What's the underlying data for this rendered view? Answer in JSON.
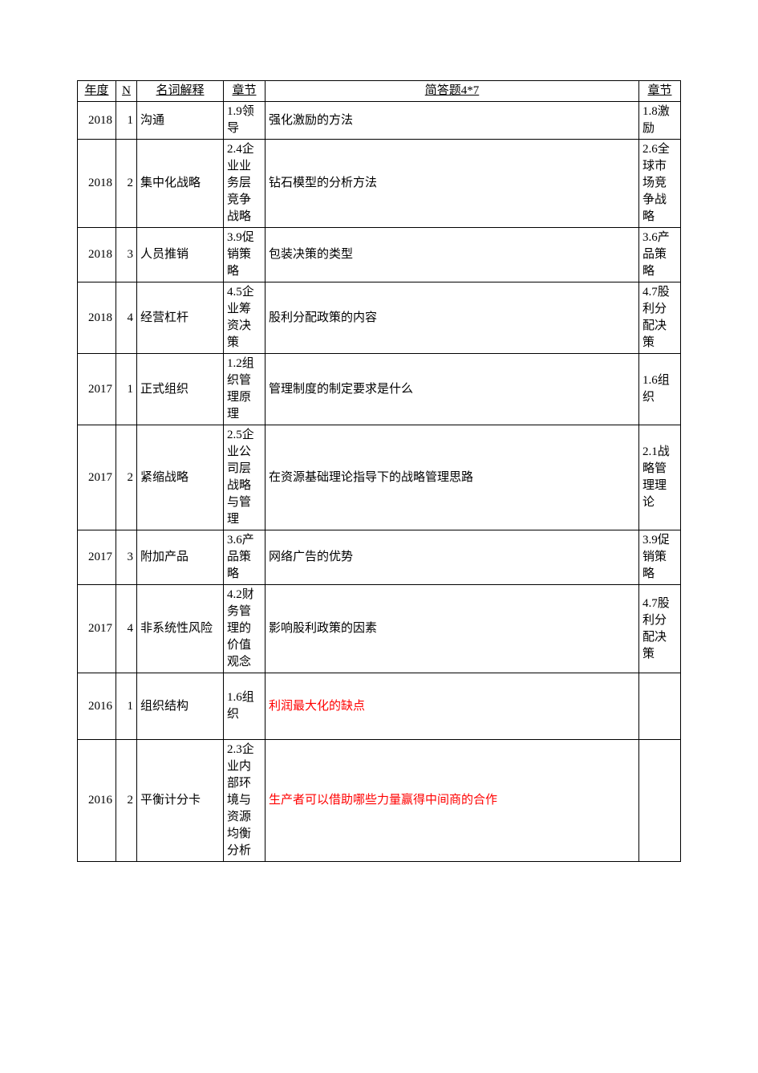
{
  "table": {
    "headers": {
      "year": "年度",
      "n": "N",
      "term": "名词解释",
      "ch1": "章节",
      "question": "简答题4*7",
      "ch2": "章节"
    },
    "rows": [
      {
        "year": "2018",
        "n": "1",
        "term": "沟通",
        "ch1": "1.9领导",
        "q": "强化激励的方法",
        "ch2": "1.8激励",
        "q_red": false
      },
      {
        "year": "2018",
        "n": "2",
        "term": "集中化战略",
        "ch1": "2.4企业业务层竞争战略",
        "q": "钻石模型的分析方法",
        "ch2": "2.6全球市场竞争战略",
        "q_red": false
      },
      {
        "year": "2018",
        "n": "3",
        "term": "人员推销",
        "ch1": "3.9促销策略",
        "q": "包装决策的类型",
        "ch2": "3.6产品策略",
        "q_red": false
      },
      {
        "year": "2018",
        "n": "4",
        "term": "经营杠杆",
        "ch1": "4.5企业筹资决策",
        "q": "股利分配政策的内容",
        "ch2": "4.7股利分配决策",
        "q_red": false
      },
      {
        "year": "2017",
        "n": "1",
        "term": "正式组织",
        "ch1": "1.2组织管理原理",
        "q": "管理制度的制定要求是什么",
        "ch2": "1.6组织",
        "q_red": false
      },
      {
        "year": "2017",
        "n": "2",
        "term": "紧缩战略",
        "ch1": "2.5企业公司层战略与管理",
        "q": "在资源基础理论指导下的战略管理思路",
        "ch2": "2.1战略管理理论",
        "q_red": false
      },
      {
        "year": "2017",
        "n": "3",
        "term": "附加产品",
        "ch1": "3.6产品策略",
        "q": "网络广告的优势",
        "ch2": "3.9促销策略",
        "q_red": false
      },
      {
        "year": "2017",
        "n": "4",
        "term": "非系统性风险",
        "ch1": "4.2财务管理的价值观念",
        "q": "影响股利政策的因素",
        "ch2": "4.7股利分配决策",
        "q_red": false
      },
      {
        "year": "2016",
        "n": "1",
        "term": "组织结构",
        "ch1": "1.6组织",
        "q": "利润最大化的缺点",
        "ch2": "",
        "q_red": true,
        "pad": 2
      },
      {
        "year": "2016",
        "n": "2",
        "term": "平衡计分卡",
        "ch1": "2.3企业内部环境与资源均衡分析",
        "q": "生产者可以借助哪些力量赢得中间商的合作",
        "ch2": "",
        "q_red": true
      }
    ]
  },
  "style": {
    "text_color": "#000000",
    "red_color": "#ff0000",
    "border_color": "#000000",
    "background": "#ffffff",
    "font_size_pt": 11
  }
}
